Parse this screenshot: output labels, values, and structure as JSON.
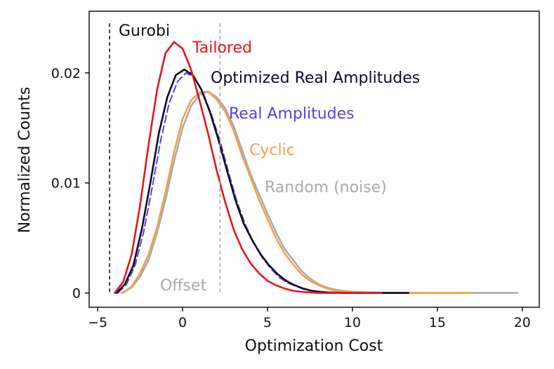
{
  "chart_data": {
    "type": "line",
    "title": "",
    "xlabel": "Optimization Cost",
    "ylabel": "Normalized Counts",
    "xlim": [
      -5.5,
      21.0
    ],
    "ylim": [
      -0.0013,
      0.0256
    ],
    "xticks": [
      -5,
      0,
      5,
      10,
      15,
      20
    ],
    "xtick_labels": [
      "−5",
      "0",
      "5",
      "10",
      "15",
      "20"
    ],
    "yticks": [
      0,
      0.01,
      0.02
    ],
    "ytick_labels": [
      "0",
      "0.01",
      "0.02"
    ],
    "grid": false,
    "series": [
      {
        "name": "Random (noise)",
        "color": "#a6abb0",
        "dashed": false,
        "x": [
          -3.6,
          -3.0,
          -2.5,
          -2.0,
          -1.5,
          -1.0,
          -0.5,
          0,
          0.5,
          1.0,
          1.5,
          2.0,
          2.5,
          3.0,
          3.5,
          4.0,
          4.5,
          5.0,
          5.5,
          6.0,
          6.5,
          7.0,
          7.5,
          8.0,
          8.5,
          9.0,
          9.5,
          10.0,
          11.0,
          12.0,
          14.0,
          17.0,
          19.7
        ],
        "y": [
          0.0,
          0.0005,
          0.0015,
          0.003,
          0.0055,
          0.0085,
          0.012,
          0.015,
          0.017,
          0.018,
          0.0183,
          0.0178,
          0.0168,
          0.0152,
          0.013,
          0.0108,
          0.009,
          0.0072,
          0.0055,
          0.004,
          0.003,
          0.002,
          0.0013,
          0.0008,
          0.0005,
          0.0003,
          0.0002,
          0.0001,
          5e-05,
          0.0,
          0.0,
          0.0,
          0.0
        ]
      },
      {
        "name": "Cyclic",
        "color": "#f5a04a",
        "dashed": false,
        "x": [
          -3.5,
          -3.0,
          -2.5,
          -2.0,
          -1.5,
          -1.0,
          -0.5,
          0,
          0.5,
          1.0,
          1.5,
          2.0,
          2.5,
          3.0,
          3.5,
          4.0,
          4.5,
          5.0,
          5.5,
          6.0,
          6.5,
          7.0,
          7.5,
          8.0,
          8.5,
          9.0,
          10.0,
          11.0,
          13.0,
          15.0,
          17.1
        ],
        "y": [
          0.0,
          0.0006,
          0.0018,
          0.0035,
          0.006,
          0.0092,
          0.0128,
          0.0158,
          0.0175,
          0.0182,
          0.0183,
          0.0176,
          0.0165,
          0.0148,
          0.0125,
          0.0105,
          0.0085,
          0.0067,
          0.005,
          0.0036,
          0.0026,
          0.0017,
          0.0011,
          0.0007,
          0.0004,
          0.0002,
          0.0001,
          3e-05,
          0.0,
          0.0,
          0.0
        ]
      },
      {
        "name": "Real Amplitudes",
        "color": "#5b3fd9",
        "dashed": true,
        "x": [
          -3.8,
          -3.3,
          -2.8,
          -2.3,
          -1.8,
          -1.3,
          -0.8,
          -0.3,
          0.2,
          0.7,
          1.2,
          1.7,
          2.2,
          2.7,
          3.2,
          3.7,
          4.2,
          4.7,
          5.2,
          5.7,
          6.2,
          6.7,
          7.2,
          7.7,
          8.2,
          9.0,
          10.0
        ],
        "y": [
          0.0,
          0.0008,
          0.0025,
          0.0055,
          0.0095,
          0.0138,
          0.0172,
          0.0192,
          0.02,
          0.0196,
          0.0182,
          0.0162,
          0.0138,
          0.011,
          0.0083,
          0.0062,
          0.0045,
          0.0032,
          0.0022,
          0.0014,
          0.0009,
          0.0006,
          0.0003,
          0.0002,
          0.0001,
          0.0,
          0.0
        ]
      },
      {
        "name": "Optimized Real Amplitudes",
        "color": "#0f0a2a",
        "dashed": false,
        "x": [
          -3.9,
          -3.4,
          -2.9,
          -2.4,
          -1.9,
          -1.4,
          -0.9,
          -0.4,
          0.1,
          0.6,
          1.1,
          1.6,
          2.1,
          2.6,
          3.1,
          3.6,
          4.1,
          4.6,
          5.1,
          5.6,
          6.1,
          6.6,
          7.1,
          7.6,
          8.1,
          8.6,
          9.5,
          10.5,
          11.7,
          13.3
        ],
        "y": [
          0.0,
          0.0008,
          0.0025,
          0.0058,
          0.01,
          0.0145,
          0.0178,
          0.0198,
          0.0203,
          0.0198,
          0.0185,
          0.0165,
          0.014,
          0.0112,
          0.0085,
          0.0063,
          0.0048,
          0.0035,
          0.0025,
          0.0017,
          0.0011,
          0.0007,
          0.0004,
          0.0002,
          0.0001,
          5e-05,
          0.0,
          0.0,
          0.0,
          0.0
        ]
      },
      {
        "name": "Tailored",
        "color": "#e8151b",
        "dashed": false,
        "x": [
          -4.0,
          -3.5,
          -3.0,
          -2.5,
          -2.0,
          -1.5,
          -1.0,
          -0.5,
          0,
          0.5,
          1.0,
          1.5,
          2.0,
          2.5,
          3.0,
          3.5,
          4.0,
          4.5,
          5.0,
          5.5,
          6.0,
          6.5,
          7.0,
          7.5,
          8.0,
          9.0,
          10.0,
          11.7
        ],
        "y": [
          0.0,
          0.001,
          0.0035,
          0.008,
          0.0135,
          0.0185,
          0.0218,
          0.0228,
          0.0222,
          0.0203,
          0.0175,
          0.0145,
          0.0112,
          0.0083,
          0.0058,
          0.004,
          0.0027,
          0.0018,
          0.0011,
          0.0007,
          0.0004,
          0.0002,
          0.0001,
          5e-05,
          0.0,
          0.0,
          0.0,
          0.0
        ]
      }
    ],
    "reference_lines": [
      {
        "name": "Gurobi",
        "x": -4.3,
        "color": "#111111"
      },
      {
        "name": "Offset",
        "x": 2.2,
        "color": "#a6abb0"
      }
    ],
    "annotations": {
      "gurobi": "Gurobi",
      "tailored": "Tailored",
      "optimized_real_amplitudes": "Optimized Real Amplitudes",
      "real_amplitudes": "Real Amplitudes",
      "cyclic": "Cyclic",
      "random": "Random (noise)",
      "offset": "Offset"
    }
  }
}
